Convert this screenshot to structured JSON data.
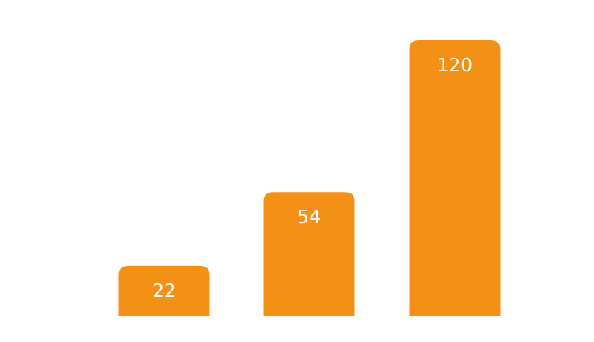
{
  "chart_data": {
    "type": "bar",
    "categories": [
      "",
      "",
      ""
    ],
    "values": [
      22,
      54,
      120
    ],
    "data_labels": [
      "22",
      "54",
      "120"
    ],
    "title": "",
    "xlabel": "",
    "ylabel": "",
    "ylim": [
      0,
      120
    ],
    "grid": false,
    "legend": "none",
    "bar_color": "#F39016",
    "label_color": "#FFFFFF",
    "background": "#FFFFFF"
  }
}
